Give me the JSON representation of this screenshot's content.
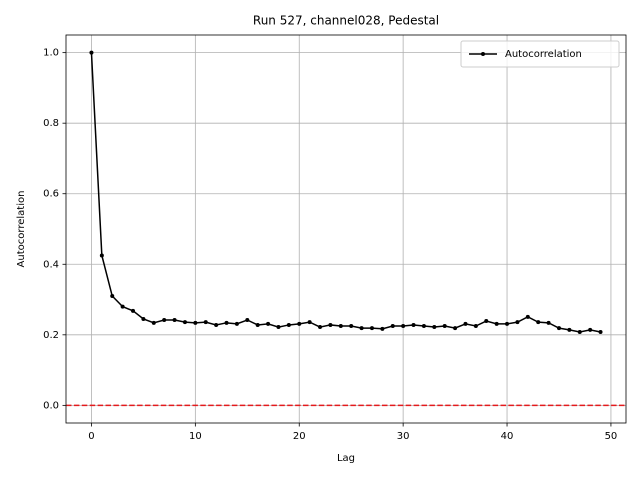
{
  "chart_data": {
    "type": "line",
    "title": "Run 527, channel028, Pedestal",
    "x_label": "Lag",
    "y_label": "Autocorrelation",
    "x": [
      0,
      1,
      2,
      3,
      4,
      5,
      6,
      7,
      8,
      9,
      10,
      11,
      12,
      13,
      14,
      15,
      16,
      17,
      18,
      19,
      20,
      21,
      22,
      23,
      24,
      25,
      26,
      27,
      28,
      29,
      30,
      31,
      32,
      33,
      34,
      35,
      36,
      37,
      38,
      39,
      40,
      41,
      42,
      43,
      44,
      45,
      46,
      47,
      48,
      49
    ],
    "series": [
      {
        "name": "Autocorrelation",
        "color": "#000000",
        "marker": "o",
        "values": [
          1.0,
          0.425,
          0.31,
          0.28,
          0.268,
          0.245,
          0.234,
          0.242,
          0.242,
          0.236,
          0.234,
          0.236,
          0.228,
          0.234,
          0.231,
          0.242,
          0.228,
          0.231,
          0.222,
          0.228,
          0.231,
          0.236,
          0.222,
          0.228,
          0.225,
          0.225,
          0.219,
          0.219,
          0.217,
          0.225,
          0.225,
          0.228,
          0.225,
          0.222,
          0.225,
          0.219,
          0.231,
          0.225,
          0.239,
          0.231,
          0.231,
          0.236,
          0.251,
          0.236,
          0.234,
          0.219,
          0.214,
          0.208,
          0.214,
          0.208
        ]
      }
    ],
    "hlines": [
      {
        "y": 0,
        "color": "#e41a1c",
        "style": "dashed"
      }
    ],
    "xlim": [
      -2.45,
      51.45
    ],
    "xticks": [
      0,
      10,
      20,
      30,
      40,
      50
    ],
    "ylim": [
      -0.05,
      1.05
    ],
    "yticks": [
      {
        "value": 0,
        "label": "0.0"
      },
      0.2,
      0.4,
      0.6,
      0.8,
      {
        "value": 1,
        "label": "1.0"
      }
    ],
    "grid": true,
    "legend": "upper right"
  }
}
